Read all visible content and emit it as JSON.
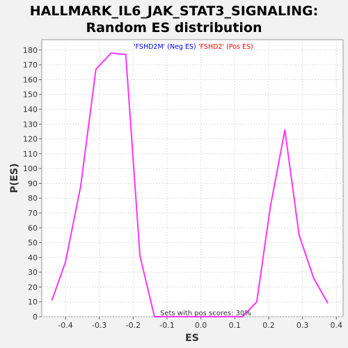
{
  "chart_data": {
    "type": "line",
    "title_lines": [
      "HALLMARK_IL6_JAK_STAT3_SIGNALING:",
      "Random ES distribution"
    ],
    "xlabel": "ES",
    "ylabel": "P(ES)",
    "xlim": [
      -0.47,
      0.42
    ],
    "ylim": [
      0,
      187
    ],
    "xticks": [
      -0.4,
      -0.3,
      -0.2,
      -0.1,
      0.0,
      0.1,
      0.2,
      0.3,
      0.4
    ],
    "xtick_labels": [
      "-0.4",
      "-0.3",
      "-0.2",
      "-0.1",
      "0.0",
      "0.1",
      "0.2",
      "0.3",
      "0.4"
    ],
    "yticks": [
      0,
      10,
      20,
      30,
      40,
      50,
      60,
      70,
      80,
      90,
      100,
      110,
      120,
      130,
      140,
      150,
      160,
      170,
      180
    ],
    "ytick_labels": [
      "0",
      "10",
      "20",
      "30",
      "40",
      "50",
      "60",
      "70",
      "80",
      "90",
      "100",
      "110",
      "120",
      "130",
      "140",
      "150",
      "160",
      "170",
      "180"
    ],
    "grid": true,
    "legend": [
      {
        "label": "'FSHD2M' (Neg ES)",
        "color": "#0000ff"
      },
      {
        "label": "'FSHD2' (Pos ES)",
        "color": "#ff0000"
      }
    ],
    "annotation": "Sets with pos scores: 30%",
    "series": [
      {
        "color": "#ff33ff",
        "points": [
          [
            -0.44,
            11
          ],
          [
            -0.4,
            37
          ],
          [
            -0.355,
            88
          ],
          [
            -0.31,
            167
          ],
          [
            -0.265,
            178
          ],
          [
            -0.222,
            177
          ],
          [
            -0.18,
            41
          ],
          [
            -0.137,
            0
          ],
          [
            -0.093,
            0
          ],
          [
            -0.05,
            0
          ],
          [
            -0.007,
            0
          ],
          [
            0.037,
            0
          ],
          [
            0.08,
            0
          ],
          [
            0.123,
            0
          ],
          [
            0.165,
            10
          ],
          [
            0.205,
            74
          ],
          [
            0.248,
            126
          ],
          [
            0.29,
            55
          ],
          [
            0.333,
            26
          ],
          [
            0.375,
            9
          ]
        ]
      }
    ]
  }
}
